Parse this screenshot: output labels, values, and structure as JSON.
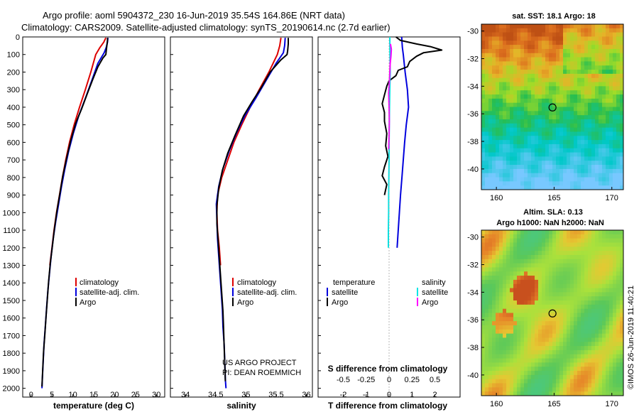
{
  "header": {
    "title_line1": "Argo profile: aoml 5904372_230 16-Jun-2019 35.54S 164.86E (NRT data)",
    "title_line2": "Climatology: CARS2009. Satellite-adjusted climatology: synTS_20190614.nc (2.7d earlier)"
  },
  "colors": {
    "climatology": "#dd0000",
    "satellite": "#0000dd",
    "argo": "#000000",
    "sat_salinity": "#00e5e5",
    "argo_salinity": "#ff00ff"
  },
  "credit": {
    "line1": "US ARGO PROJECT",
    "line2": "PI: DEAN ROEMMICH"
  },
  "timestamp": "©IMOS 26-Jun-2019 11:40:21",
  "chart_data": [
    {
      "type": "line",
      "name": "temperature",
      "xlabel": "temperature (deg C)",
      "ylabel": "",
      "xlim": [
        -2,
        32
      ],
      "ylim": [
        2050,
        0
      ],
      "xticks": [
        0,
        5,
        10,
        15,
        20,
        25,
        30
      ],
      "yticks": [
        0,
        100,
        200,
        300,
        400,
        500,
        600,
        700,
        800,
        900,
        1000,
        1100,
        1200,
        1300,
        1400,
        1500,
        1600,
        1700,
        1800,
        1900,
        2000
      ],
      "legend": [
        "climatology",
        "satellite-adj. clim.",
        "Argo"
      ],
      "series": [
        {
          "name": "climatology",
          "color": "#dd0000",
          "points": [
            [
              17.9,
              5
            ],
            [
              17.4,
              30
            ],
            [
              16.5,
              60
            ],
            [
              15.5,
              100
            ],
            [
              14.3,
              200
            ],
            [
              13.0,
              300
            ],
            [
              11.6,
              400
            ],
            [
              10.3,
              500
            ],
            [
              9.2,
              600
            ],
            [
              8.3,
              700
            ],
            [
              7.5,
              800
            ],
            [
              6.8,
              900
            ],
            [
              6.1,
              1000
            ],
            [
              5.5,
              1100
            ],
            [
              5.0,
              1200
            ],
            [
              4.5,
              1300
            ]
          ]
        },
        {
          "name": "satellite-adj. clim.",
          "color": "#0000dd",
          "points": [
            [
              18.4,
              5
            ],
            [
              18.3,
              30
            ],
            [
              18.0,
              60
            ],
            [
              17.5,
              90
            ],
            [
              16.0,
              150
            ],
            [
              14.5,
              250
            ],
            [
              13.0,
              350
            ],
            [
              11.4,
              450
            ],
            [
              10.1,
              550
            ],
            [
              9.0,
              650
            ],
            [
              8.1,
              750
            ],
            [
              7.3,
              850
            ],
            [
              6.6,
              950
            ],
            [
              5.9,
              1050
            ],
            [
              5.3,
              1150
            ],
            [
              4.8,
              1250
            ],
            [
              4.4,
              1350
            ],
            [
              4.0,
              1450
            ],
            [
              3.7,
              1550
            ],
            [
              3.4,
              1650
            ],
            [
              3.1,
              1750
            ],
            [
              2.9,
              1850
            ],
            [
              2.7,
              1950
            ],
            [
              2.6,
              2000
            ]
          ]
        },
        {
          "name": "Argo",
          "color": "#000000",
          "points": [
            [
              18.3,
              5
            ],
            [
              18.3,
              20
            ],
            [
              18.2,
              40
            ],
            [
              18.1,
              60
            ],
            [
              18.0,
              80
            ],
            [
              17.9,
              100
            ],
            [
              17.2,
              120
            ],
            [
              16.0,
              170
            ],
            [
              14.8,
              240
            ],
            [
              13.5,
              320
            ],
            [
              12.1,
              410
            ],
            [
              10.7,
              490
            ],
            [
              9.5,
              590
            ],
            [
              8.5,
              690
            ],
            [
              7.6,
              790
            ],
            [
              6.9,
              890
            ],
            [
              6.2,
              990
            ],
            [
              5.6,
              1090
            ],
            [
              5.1,
              1190
            ],
            [
              4.6,
              1290
            ],
            [
              4.2,
              1390
            ],
            [
              3.9,
              1490
            ],
            [
              3.6,
              1590
            ],
            [
              3.3,
              1690
            ],
            [
              3.0,
              1790
            ],
            [
              2.8,
              1890
            ],
            [
              2.6,
              1990
            ]
          ]
        }
      ]
    },
    {
      "type": "line",
      "name": "salinity",
      "xlabel": "salinity",
      "xlim": [
        33.75,
        36.1
      ],
      "ylim": [
        2050,
        0
      ],
      "xticks": [
        34,
        34.5,
        35,
        35.5,
        36
      ],
      "legend": [
        "climatology",
        "satellite-adj. clim.",
        "Argo"
      ],
      "series": [
        {
          "name": "climatology",
          "color": "#dd0000",
          "points": [
            [
              35.58,
              5
            ],
            [
              35.56,
              50
            ],
            [
              35.52,
              100
            ],
            [
              35.38,
              200
            ],
            [
              35.22,
              300
            ],
            [
              35.07,
              400
            ],
            [
              34.93,
              500
            ],
            [
              34.8,
              600
            ],
            [
              34.7,
              700
            ],
            [
              34.6,
              800
            ],
            [
              34.53,
              900
            ],
            [
              34.52,
              1000
            ],
            [
              34.53,
              1100
            ],
            [
              34.56,
              1200
            ],
            [
              34.58,
              1300
            ]
          ]
        },
        {
          "name": "satellite-adj. clim.",
          "color": "#0000dd",
          "points": [
            [
              35.65,
              5
            ],
            [
              35.64,
              50
            ],
            [
              35.62,
              90
            ],
            [
              35.5,
              150
            ],
            [
              35.33,
              250
            ],
            [
              35.16,
              350
            ],
            [
              34.98,
              450
            ],
            [
              34.84,
              550
            ],
            [
              34.72,
              650
            ],
            [
              34.62,
              750
            ],
            [
              34.55,
              850
            ],
            [
              34.51,
              950
            ],
            [
              34.52,
              1050
            ],
            [
              34.53,
              1150
            ],
            [
              34.55,
              1250
            ],
            [
              34.57,
              1350
            ],
            [
              34.59,
              1450
            ],
            [
              34.61,
              1550
            ],
            [
              34.62,
              1650
            ],
            [
              34.64,
              1750
            ],
            [
              34.65,
              1850
            ],
            [
              34.66,
              1950
            ],
            [
              34.67,
              2000
            ]
          ]
        },
        {
          "name": "Argo",
          "color": "#000000",
          "points": [
            [
              35.7,
              5
            ],
            [
              35.7,
              40
            ],
            [
              35.69,
              80
            ],
            [
              35.68,
              100
            ],
            [
              35.58,
              130
            ],
            [
              35.4,
              200
            ],
            [
              35.25,
              290
            ],
            [
              35.1,
              370
            ],
            [
              34.96,
              450
            ],
            [
              34.82,
              560
            ],
            [
              34.7,
              660
            ],
            [
              34.61,
              760
            ],
            [
              34.55,
              860
            ],
            [
              34.52,
              960
            ],
            [
              34.52,
              1060
            ],
            [
              34.54,
              1160
            ],
            [
              34.56,
              1260
            ],
            [
              34.58,
              1360
            ],
            [
              34.6,
              1460
            ],
            [
              34.62,
              1560
            ],
            [
              34.63,
              1660
            ],
            [
              34.64,
              1760
            ],
            [
              34.65,
              1860
            ],
            [
              34.66,
              1960
            ]
          ]
        }
      ]
    },
    {
      "type": "line",
      "name": "difference",
      "xlabel": "T difference from climatology",
      "xlabel_top": "S difference from climatology",
      "xlim": [
        -3.1,
        3.1
      ],
      "ylim": [
        2050,
        0
      ],
      "xticks": [
        -2,
        -1,
        0,
        1,
        2
      ],
      "xticks_s": [
        -0.5,
        -0.25,
        0,
        0.25,
        0.5
      ],
      "xticks_s_labels": [
        "-0.5",
        "-0.25",
        "0",
        "0.25",
        "0.5"
      ],
      "legend_temperature_title": "temperature",
      "legend_salinity_title": "salinity",
      "legend_temperature": [
        "satellite",
        "Argo"
      ],
      "legend_salinity": [
        "satellite",
        "Argo"
      ],
      "series": [
        {
          "name": "temperature satellite",
          "color": "#0000dd",
          "points": [
            [
              0.55,
              0
            ],
            [
              0.58,
              60
            ],
            [
              0.62,
              100
            ],
            [
              0.7,
              200
            ],
            [
              0.8,
              300
            ],
            [
              0.85,
              400
            ],
            [
              0.75,
              500
            ],
            [
              0.68,
              600
            ],
            [
              0.62,
              700
            ],
            [
              0.56,
              800
            ],
            [
              0.5,
              900
            ],
            [
              0.45,
              1000
            ],
            [
              0.4,
              1100
            ],
            [
              0.35,
              1200
            ]
          ]
        },
        {
          "name": "temperature Argo",
          "color": "#000000",
          "points": [
            [
              0.3,
              0
            ],
            [
              0.5,
              20
            ],
            [
              1.2,
              40
            ],
            [
              1.8,
              55
            ],
            [
              2.3,
              75
            ],
            [
              1.5,
              90
            ],
            [
              1.2,
              110
            ],
            [
              0.9,
              140
            ],
            [
              0.8,
              170
            ],
            [
              0.4,
              190
            ],
            [
              0.3,
              220
            ],
            [
              0.0,
              250
            ],
            [
              -0.1,
              280
            ],
            [
              -0.2,
              330
            ],
            [
              -0.3,
              380
            ],
            [
              -0.2,
              430
            ],
            [
              -0.2,
              480
            ],
            [
              -0.1,
              550
            ],
            [
              -0.15,
              620
            ],
            [
              -0.05,
              680
            ],
            [
              -0.2,
              740
            ],
            [
              -0.3,
              790
            ],
            [
              -0.1,
              840
            ],
            [
              -0.2,
              900
            ]
          ]
        },
        {
          "name": "salinity satellite",
          "color": "#00e5e5",
          "points": [
            [
              0.03,
              0
            ],
            [
              0.04,
              100
            ],
            [
              0.05,
              200
            ],
            [
              0.03,
              300
            ],
            [
              0.02,
              400
            ],
            [
              0.01,
              500
            ],
            [
              0.0,
              600
            ],
            [
              0.0,
              700
            ],
            [
              -0.01,
              800
            ],
            [
              -0.02,
              900
            ],
            [
              -0.02,
              1000
            ],
            [
              -0.03,
              1100
            ],
            [
              -0.03,
              1200
            ]
          ]
        },
        {
          "name": "salinity Argo",
          "color": "#ff00ff",
          "points": [
            [
              0.06,
              40
            ],
            [
              0.1,
              70
            ],
            [
              0.08,
              110
            ],
            [
              0.05,
              150
            ],
            [
              0.03,
              200
            ],
            [
              0.01,
              260
            ],
            [
              -0.02,
              320
            ],
            [
              0.0,
              400
            ],
            [
              0.01,
              480
            ],
            [
              0.0,
              560
            ],
            [
              -0.02,
              640
            ]
          ]
        }
      ]
    },
    {
      "type": "heatmap",
      "name": "sst-map",
      "title": "sat. SST: 18.1 Argo: 18",
      "xlim": [
        158.7,
        171
      ],
      "ylim": [
        -41.5,
        -29.5
      ],
      "xticks": [
        160,
        165,
        170
      ],
      "yticks": [
        -30,
        -32,
        -34,
        -36,
        -38,
        -40
      ],
      "marker": [
        164.86,
        -35.54
      ]
    },
    {
      "type": "heatmap",
      "name": "sla-map",
      "title_line1": "Altim. SLA: 0.13",
      "title_line2": "Argo h1000: NaN h2000: NaN",
      "xlim": [
        158.7,
        171
      ],
      "ylim": [
        -41.5,
        -29.5
      ],
      "xticks": [
        160,
        165,
        170
      ],
      "yticks": [
        -30,
        -32,
        -34,
        -36,
        -38,
        -40
      ],
      "marker": [
        164.86,
        -35.54
      ]
    }
  ]
}
